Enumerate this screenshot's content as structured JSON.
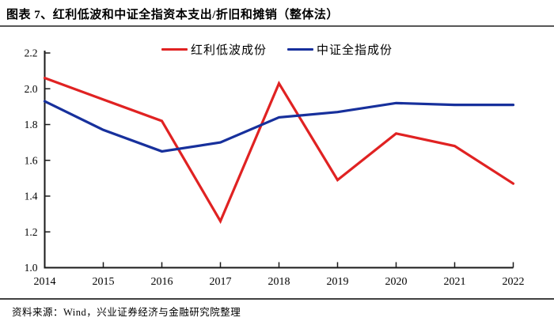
{
  "page": {
    "title": "图表 7、红利低波和中证全指资本支出/折旧和摊销（整体法）",
    "source": "资料来源：Wind，兴业证券经济与金融研究院整理"
  },
  "chart_data": {
    "type": "line",
    "title": "",
    "xlabel": "",
    "ylabel": "",
    "categories": [
      "2014",
      "2015",
      "2016",
      "2017",
      "2018",
      "2019",
      "2020",
      "2021",
      "2022"
    ],
    "series": [
      {
        "name": "红利低波成份",
        "color": "#e02222",
        "values": [
          2.06,
          1.94,
          1.82,
          1.26,
          2.03,
          1.49,
          1.75,
          1.68,
          1.47
        ]
      },
      {
        "name": "中证全指成份",
        "color": "#17309c",
        "values": [
          1.93,
          1.77,
          1.65,
          1.7,
          1.84,
          1.87,
          1.92,
          1.91,
          1.91
        ]
      }
    ],
    "ylim": [
      1.0,
      2.2
    ],
    "y_ticks": [
      "2.2",
      "2.0",
      "1.8",
      "1.6",
      "1.4",
      "1.2",
      "1.0"
    ],
    "grid": false,
    "legend_position": "top-center",
    "axis_color": "#1a1a1a"
  }
}
